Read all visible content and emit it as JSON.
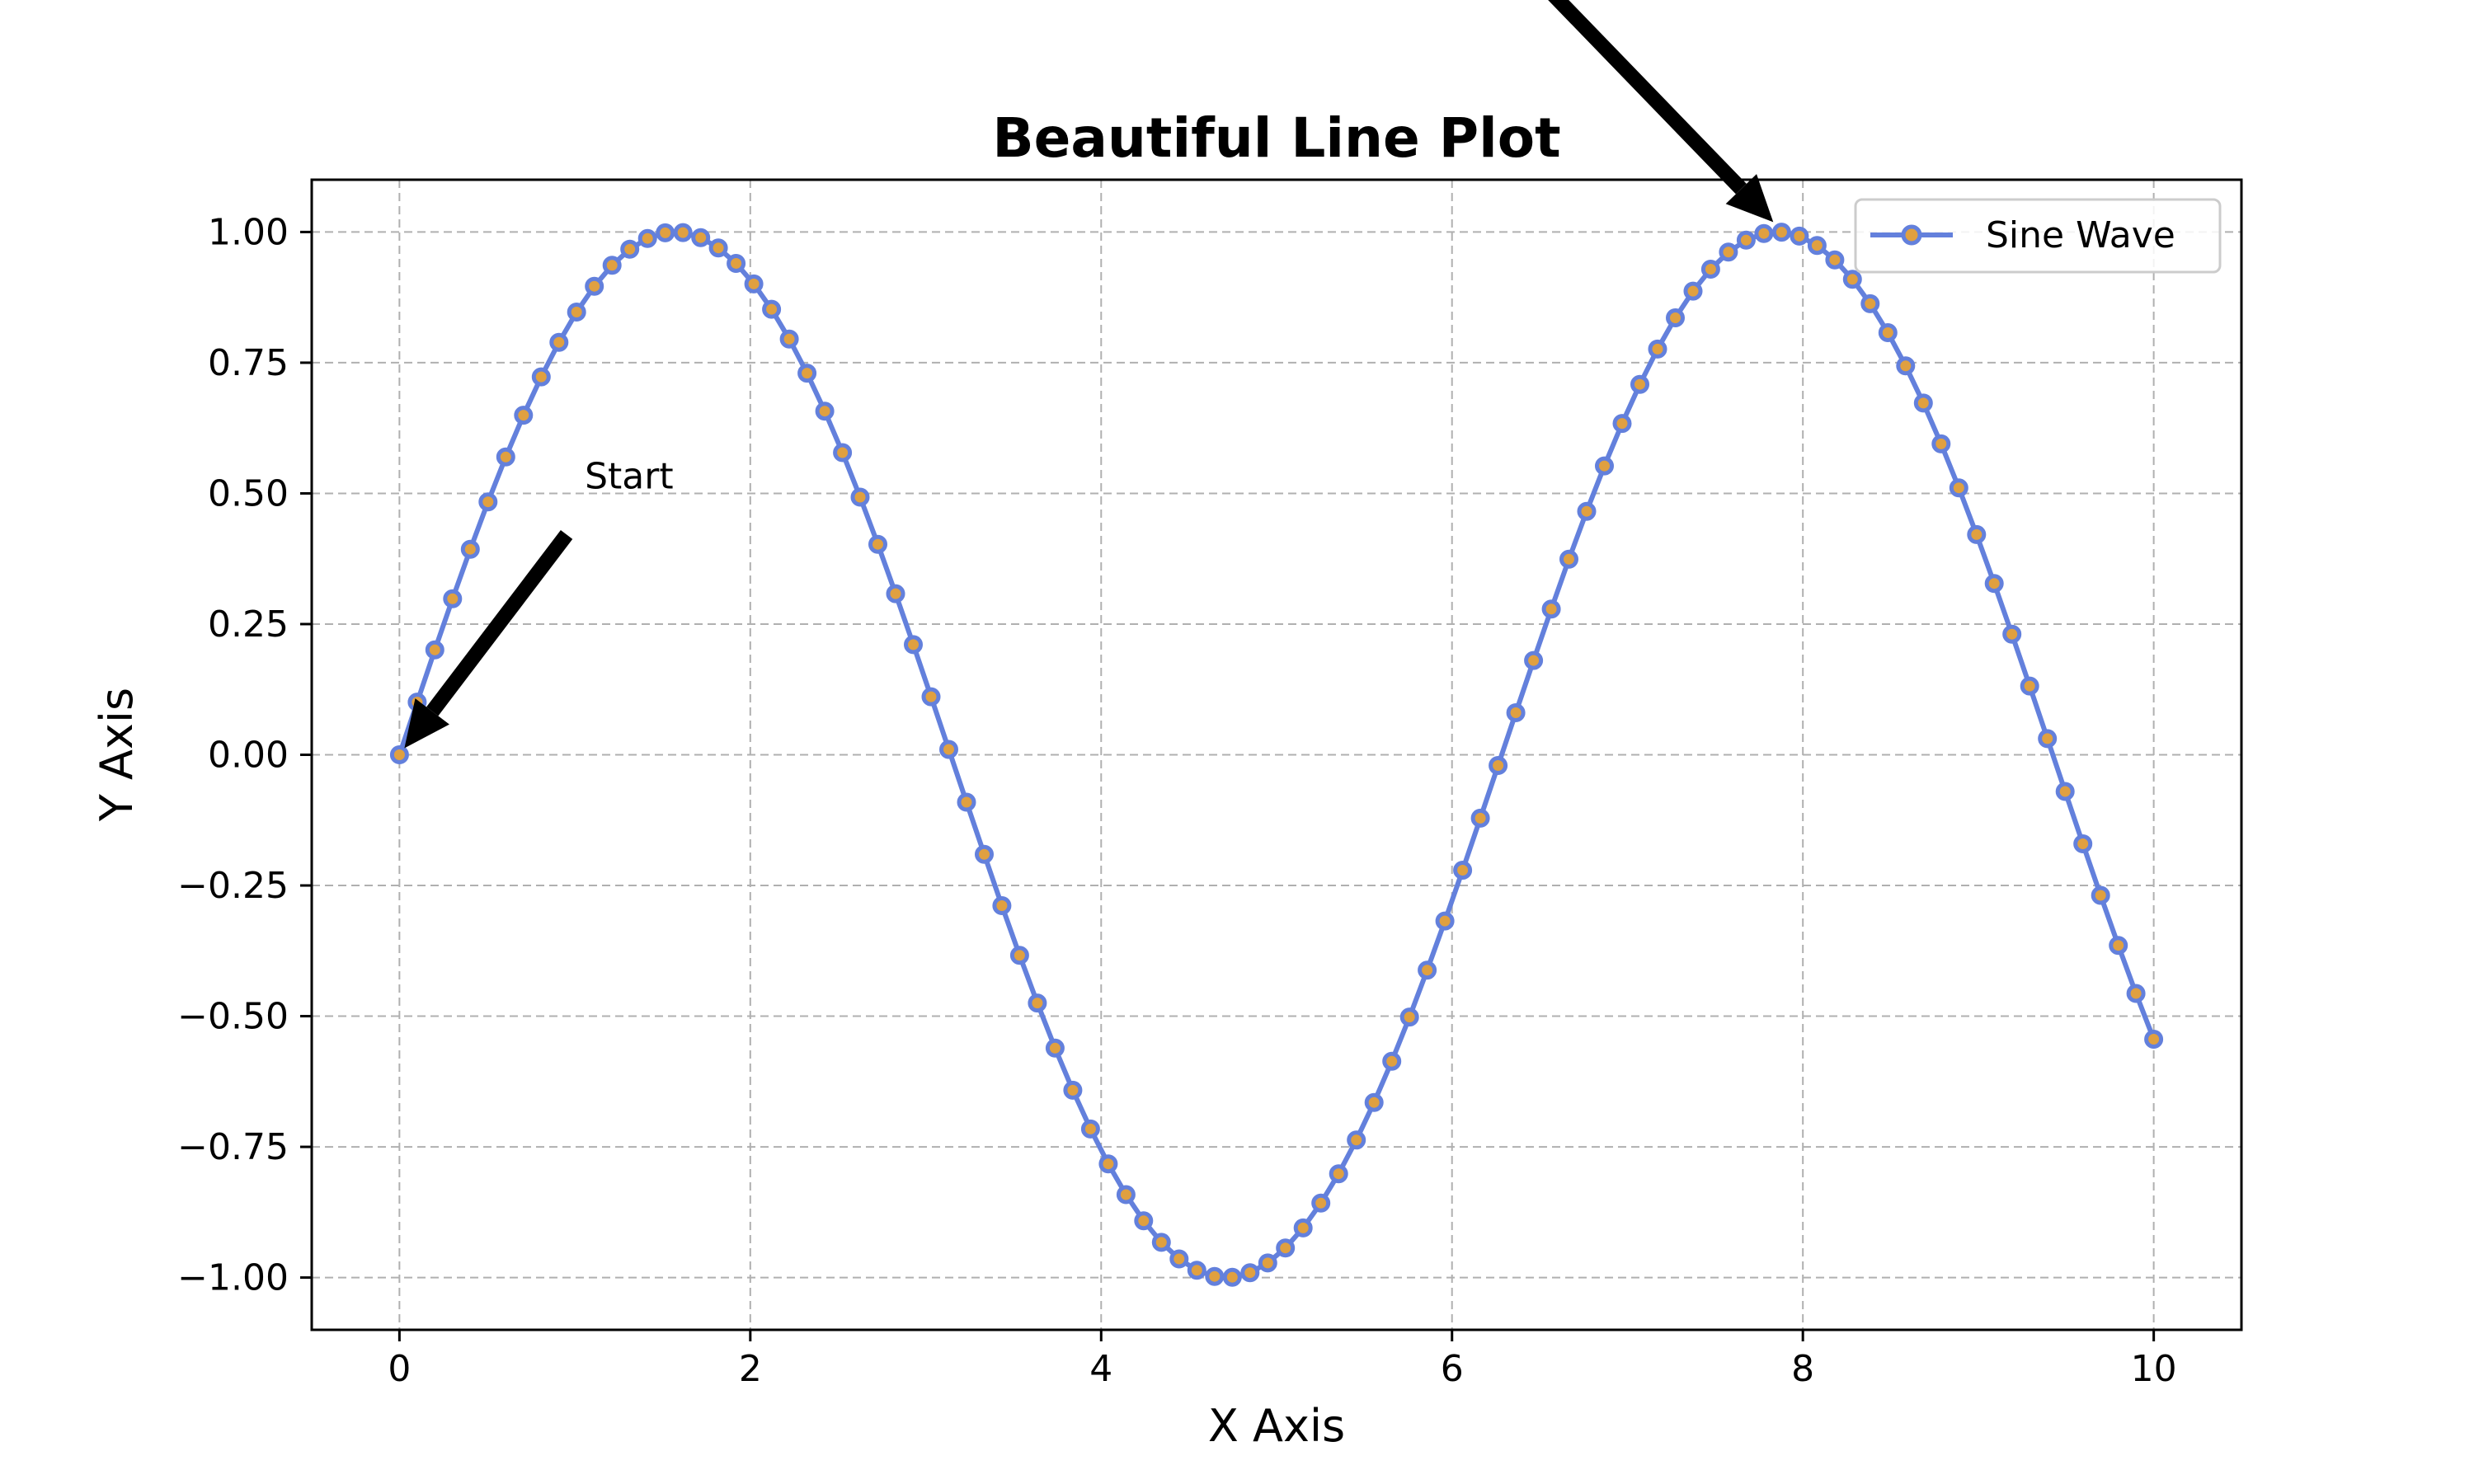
{
  "chart_data": {
    "type": "line",
    "title": "Beautiful Line Plot",
    "xlabel": "X Axis",
    "ylabel": "Y Axis",
    "xlim": [
      -0.5,
      10.5
    ],
    "ylim": [
      -1.1,
      1.1
    ],
    "x_ticks": [
      0,
      2,
      4,
      6,
      8,
      10
    ],
    "y_ticks": [
      -1.0,
      -0.75,
      -0.5,
      -0.25,
      0.0,
      0.25,
      0.5,
      0.75,
      1.0
    ],
    "x_tick_labels": [
      "0",
      "2",
      "4",
      "6",
      "8",
      "10"
    ],
    "y_tick_labels": [
      "−1.00",
      "−0.75",
      "−0.50",
      "−0.25",
      "0.00",
      "0.25",
      "0.50",
      "0.75",
      "1.00"
    ],
    "grid": true,
    "legend_position": "top-right",
    "series": [
      {
        "name": "Sine Wave",
        "function": "sin(x)",
        "x_start": 0,
        "x_end": 10,
        "num_points": 100,
        "line_color": "#6380dc",
        "marker_fill": "#e0a040",
        "marker_edge": "#6380dc"
      }
    ],
    "annotations": [
      {
        "text": "Start",
        "point": [
          0,
          0
        ],
        "text_at": [
          1,
          0.5
        ]
      },
      {
        "text": "",
        "point": [
          7.85,
          1.0
        ]
      }
    ]
  }
}
